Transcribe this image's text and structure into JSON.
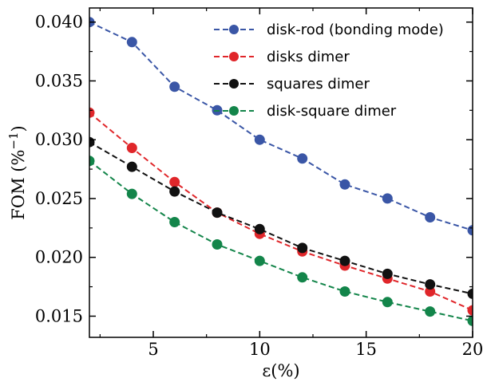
{
  "chart_data": {
    "type": "line",
    "title": "",
    "xlabel": "ε(%)",
    "ylabel": "FOM (%",
    "ylabel_sup": "−1",
    "ylabel_close": ")",
    "xlim": [
      2,
      20
    ],
    "ylim": [
      0.0132,
      0.0412
    ],
    "x_ticks": [
      5,
      10,
      15,
      20
    ],
    "x_tick_labels": [
      "5",
      "10",
      "15",
      "20"
    ],
    "y_ticks": [
      0.015,
      0.02,
      0.025,
      0.03,
      0.035,
      0.04
    ],
    "y_tick_labels": [
      "0.015",
      "0.020",
      "0.025",
      "0.030",
      "0.035",
      "0.040"
    ],
    "grid": false,
    "legend_position": "top-right",
    "x": [
      2,
      4,
      6,
      8,
      10,
      12,
      14,
      16,
      18,
      20
    ],
    "series": [
      {
        "name": "disk-rod (bonding mode)",
        "color": "#3a56a6",
        "values": [
          0.04,
          0.0383,
          0.0345,
          0.0325,
          0.03,
          0.0284,
          0.0262,
          0.025,
          0.0234,
          0.0223
        ]
      },
      {
        "name": "disks dimer",
        "color": "#e0262a",
        "values": [
          0.0323,
          0.0293,
          0.0264,
          0.0238,
          0.022,
          0.0205,
          0.0193,
          0.0182,
          0.0171,
          0.0155
        ]
      },
      {
        "name": "squares dimer",
        "color": "#111111",
        "values": [
          0.0298,
          0.0277,
          0.0256,
          0.0238,
          0.0224,
          0.0208,
          0.0197,
          0.0186,
          0.0177,
          0.0169
        ]
      },
      {
        "name": "disk-square dimer",
        "color": "#13854a",
        "values": [
          0.0282,
          0.0254,
          0.023,
          0.0211,
          0.0197,
          0.0183,
          0.0171,
          0.0162,
          0.0154,
          0.0146
        ]
      }
    ]
  }
}
